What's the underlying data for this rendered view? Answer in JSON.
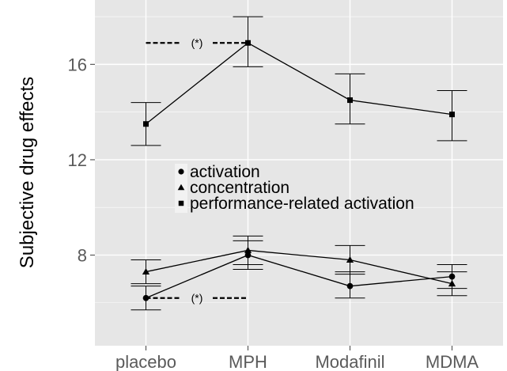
{
  "chart_data": {
    "type": "line",
    "title": "",
    "xlabel": "",
    "ylabel": "Subjective drug effects",
    "categories": [
      "placebo",
      "MPH",
      "Modafinil",
      "MDMA"
    ],
    "ylim": [
      4.2,
      18.7
    ],
    "yticks": [
      8,
      12,
      16
    ],
    "grid": true,
    "legend_position": "center-left",
    "series": [
      {
        "name": "activation",
        "marker": "circle",
        "values": [
          6.2,
          8.0,
          6.7,
          7.1
        ],
        "error_low": [
          5.7,
          7.4,
          6.2,
          6.6
        ],
        "error_high": [
          6.7,
          8.6,
          7.3,
          7.6
        ]
      },
      {
        "name": "concentration",
        "marker": "triangle",
        "values": [
          7.3,
          8.2,
          7.8,
          6.8
        ],
        "error_low": [
          6.8,
          7.6,
          7.2,
          6.3
        ],
        "error_high": [
          7.8,
          8.8,
          8.4,
          7.3
        ]
      },
      {
        "name": "performance-related activation",
        "marker": "square",
        "values": [
          13.5,
          16.9,
          14.5,
          13.9
        ],
        "error_low": [
          12.6,
          15.9,
          13.5,
          12.8
        ],
        "error_high": [
          14.4,
          18.0,
          15.6,
          14.9
        ]
      }
    ],
    "annotations": [
      {
        "text": "(*)",
        "y": 16.9,
        "x_from": "placebo",
        "x_to": "MPH"
      },
      {
        "text": "(*)",
        "y": 6.2,
        "x_from": "placebo",
        "x_to": "MPH"
      }
    ],
    "colors": {
      "panel": "#e6e6e6",
      "grid": "#ffffff",
      "line": "#000000"
    }
  }
}
